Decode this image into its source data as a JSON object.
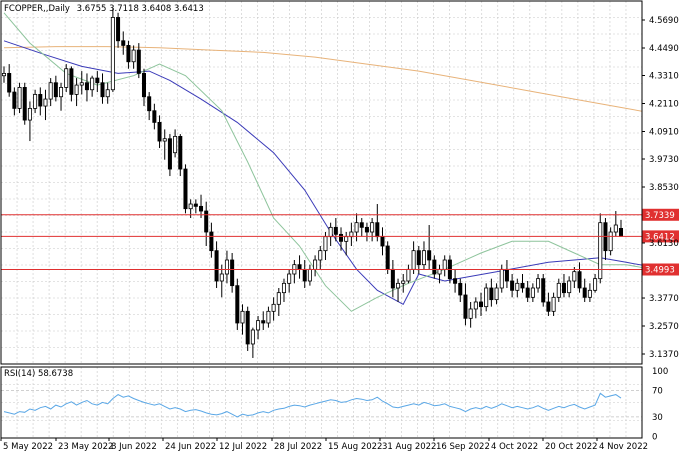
{
  "header": {
    "symbol_line": "FCOPPER,,Daily",
    "ohlc": "3.6755 3.7118 3.6408 3.6413"
  },
  "rsi_header": "RSI(14) 58.6738",
  "chart_data": [
    {
      "type": "candlestick",
      "title": "FCOPPER,,Daily 3.6755 3.7118 3.6408 3.6413",
      "ylim": [
        3.07,
        4.62
      ],
      "yticks": [
        "4.5690",
        "4.4490",
        "4.3310",
        "4.2110",
        "4.0910",
        "3.9730",
        "3.8530",
        "3.6130",
        "3.3770",
        "3.2570",
        "3.1370"
      ],
      "xticks": [
        "5 May 2022",
        "23 May 2022",
        "8 Jun 2022",
        "24 Jun 2022",
        "12 Jul 2022",
        "28 Jul 2022",
        "15 Aug 2022",
        "31 Aug 2022",
        "16 Sep 2022",
        "4 Oct 2022",
        "20 Oct 2022",
        "4 Nov 2022"
      ],
      "price_levels": [
        {
          "label": "3.7339",
          "value": 3.7339,
          "color": "#e03030"
        },
        {
          "label": "3.6412",
          "value": 3.6412,
          "color": "#e03030"
        },
        {
          "label": "3.4993",
          "value": 3.4993,
          "color": "#e03030"
        }
      ],
      "series": [
        {
          "name": "",
          "kind": "ma",
          "color": "#e8b37a",
          "points": [
            [
              0,
              4.45
            ],
            [
              10,
              4.455
            ],
            [
              20,
              4.455
            ],
            [
              30,
              4.45
            ],
            [
              40,
              4.44
            ],
            [
              50,
              4.43
            ],
            [
              60,
              4.41
            ],
            [
              70,
              4.38
            ],
            [
              80,
              4.35
            ],
            [
              90,
              4.31
            ],
            [
              100,
              4.27
            ],
            [
              110,
              4.23
            ],
            [
              120,
              4.19
            ],
            [
              130,
              4.15
            ],
            [
              140,
              4.12
            ],
            [
              150,
              4.08
            ],
            [
              160,
              4.04
            ],
            [
              170,
              4.0
            ],
            [
              175,
              3.985
            ]
          ]
        },
        {
          "name": "",
          "kind": "ma",
          "color": "#3a3ab8",
          "points": [
            [
              0,
              4.48
            ],
            [
              8,
              4.42
            ],
            [
              15,
              4.37
            ],
            [
              22,
              4.34
            ],
            [
              28,
              4.35
            ],
            [
              32,
              4.31
            ],
            [
              38,
              4.23
            ],
            [
              45,
              4.13
            ],
            [
              52,
              4.0
            ],
            [
              58,
              3.84
            ],
            [
              63,
              3.66
            ],
            [
              68,
              3.5
            ],
            [
              72,
              3.41
            ],
            [
              77,
              3.35
            ],
            [
              80,
              3.48
            ],
            [
              85,
              3.45
            ],
            [
              95,
              3.49
            ],
            [
              105,
              3.53
            ],
            [
              115,
              3.55
            ],
            [
              120,
              3.53
            ],
            [
              130,
              3.49
            ],
            [
              140,
              3.47
            ],
            [
              150,
              3.43
            ],
            [
              160,
              3.41
            ],
            [
              165,
              3.42
            ],
            [
              170,
              3.46
            ],
            [
              175,
              3.47
            ]
          ]
        },
        {
          "name": "",
          "kind": "ma",
          "color": "#8ec49c",
          "points": [
            [
              0,
              4.6
            ],
            [
              5,
              4.47
            ],
            [
              12,
              4.34
            ],
            [
              18,
              4.29
            ],
            [
              25,
              4.33
            ],
            [
              30,
              4.38
            ],
            [
              35,
              4.33
            ],
            [
              42,
              4.18
            ],
            [
              47,
              3.96
            ],
            [
              52,
              3.72
            ],
            [
              57,
              3.6
            ],
            [
              62,
              3.43
            ],
            [
              67,
              3.32
            ],
            [
              72,
              3.38
            ],
            [
              78,
              3.44
            ],
            [
              85,
              3.5
            ],
            [
              92,
              3.57
            ],
            [
              98,
              3.62
            ],
            [
              105,
              3.62
            ],
            [
              110,
              3.57
            ],
            [
              115,
              3.52
            ],
            [
              120,
              3.52
            ],
            [
              125,
              3.5
            ],
            [
              130,
              3.45
            ],
            [
              135,
              3.41
            ],
            [
              145,
              3.39
            ],
            [
              155,
              3.4
            ],
            [
              160,
              3.41
            ],
            [
              165,
              3.44
            ],
            [
              170,
              3.49
            ],
            [
              175,
              3.51
            ]
          ]
        }
      ],
      "candles": [
        [
          4.33,
          4.37,
          4.3,
          4.34
        ],
        [
          4.34,
          4.38,
          4.24,
          4.26
        ],
        [
          4.26,
          4.28,
          4.16,
          4.19
        ],
        [
          4.19,
          4.3,
          4.17,
          4.28
        ],
        [
          4.28,
          4.3,
          4.12,
          4.14
        ],
        [
          4.14,
          4.22,
          4.05,
          4.19
        ],
        [
          4.19,
          4.27,
          4.17,
          4.25
        ],
        [
          4.25,
          4.28,
          4.16,
          4.2
        ],
        [
          4.2,
          4.27,
          4.14,
          4.23
        ],
        [
          4.23,
          4.32,
          4.2,
          4.3
        ],
        [
          4.3,
          4.33,
          4.22,
          4.24
        ],
        [
          4.24,
          4.3,
          4.18,
          4.28
        ],
        [
          4.28,
          4.38,
          4.26,
          4.36
        ],
        [
          4.36,
          4.37,
          4.22,
          4.25
        ],
        [
          4.25,
          4.32,
          4.2,
          4.29
        ],
        [
          4.29,
          4.35,
          4.25,
          4.3
        ],
        [
          4.3,
          4.34,
          4.22,
          4.27
        ],
        [
          4.27,
          4.33,
          4.24,
          4.32
        ],
        [
          4.32,
          4.35,
          4.26,
          4.3
        ],
        [
          4.3,
          4.34,
          4.21,
          4.24
        ],
        [
          4.24,
          4.3,
          4.21,
          4.27
        ],
        [
          4.27,
          4.62,
          4.26,
          4.58
        ],
        [
          4.58,
          4.6,
          4.45,
          4.48
        ],
        [
          4.48,
          4.52,
          4.42,
          4.46
        ],
        [
          4.46,
          4.48,
          4.36,
          4.39
        ],
        [
          4.39,
          4.46,
          4.36,
          4.44
        ],
        [
          4.44,
          4.47,
          4.32,
          4.34
        ],
        [
          4.34,
          4.36,
          4.2,
          4.24
        ],
        [
          4.24,
          4.26,
          4.14,
          4.18
        ],
        [
          4.18,
          4.21,
          4.1,
          4.13
        ],
        [
          4.13,
          4.16,
          4.02,
          4.05
        ],
        [
          4.05,
          4.1,
          3.97,
          4.06
        ],
        [
          4.06,
          4.08,
          3.9,
          3.93
        ],
        [
          4.0,
          4.1,
          3.98,
          4.07
        ],
        [
          4.07,
          4.08,
          3.9,
          3.93
        ],
        [
          3.93,
          3.95,
          3.74,
          3.76
        ],
        [
          3.76,
          3.8,
          3.72,
          3.78
        ],
        [
          3.78,
          3.8,
          3.74,
          3.77
        ],
        [
          3.77,
          3.82,
          3.72,
          3.75
        ],
        [
          3.75,
          3.79,
          3.6,
          3.66
        ],
        [
          3.66,
          3.7,
          3.55,
          3.58
        ],
        [
          3.58,
          3.62,
          3.42,
          3.45
        ],
        [
          3.45,
          3.52,
          3.38,
          3.48
        ],
        [
          3.48,
          3.58,
          3.44,
          3.54
        ],
        [
          3.54,
          3.57,
          3.4,
          3.43
        ],
        [
          3.43,
          3.46,
          3.24,
          3.27
        ],
        [
          3.27,
          3.35,
          3.22,
          3.32
        ],
        [
          3.32,
          3.34,
          3.15,
          3.18
        ],
        [
          3.18,
          3.25,
          3.12,
          3.24
        ],
        [
          3.24,
          3.3,
          3.2,
          3.28
        ],
        [
          3.28,
          3.32,
          3.24,
          3.27
        ],
        [
          3.27,
          3.34,
          3.25,
          3.32
        ],
        [
          3.32,
          3.38,
          3.28,
          3.35
        ],
        [
          3.35,
          3.42,
          3.3,
          3.4
        ],
        [
          3.4,
          3.46,
          3.36,
          3.44
        ],
        [
          3.44,
          3.5,
          3.4,
          3.48
        ],
        [
          3.48,
          3.54,
          3.44,
          3.52
        ],
        [
          3.52,
          3.56,
          3.46,
          3.5
        ],
        [
          3.5,
          3.54,
          3.42,
          3.45
        ],
        [
          3.45,
          3.52,
          3.43,
          3.5
        ],
        [
          3.5,
          3.56,
          3.47,
          3.54
        ],
        [
          3.54,
          3.6,
          3.5,
          3.58
        ],
        [
          3.58,
          3.66,
          3.54,
          3.64
        ],
        [
          3.64,
          3.7,
          3.6,
          3.68
        ],
        [
          3.68,
          3.72,
          3.62,
          3.65
        ],
        [
          3.65,
          3.68,
          3.58,
          3.62
        ],
        [
          3.62,
          3.66,
          3.56,
          3.64
        ],
        [
          3.64,
          3.7,
          3.6,
          3.66
        ],
        [
          3.66,
          3.74,
          3.62,
          3.7
        ],
        [
          3.7,
          3.72,
          3.64,
          3.68
        ],
        [
          3.68,
          3.7,
          3.62,
          3.66
        ],
        [
          3.66,
          3.72,
          3.62,
          3.7
        ],
        [
          3.7,
          3.78,
          3.62,
          3.64
        ],
        [
          3.64,
          3.68,
          3.56,
          3.6
        ],
        [
          3.6,
          3.62,
          3.48,
          3.5
        ],
        [
          3.5,
          3.54,
          3.38,
          3.42
        ],
        [
          3.42,
          3.46,
          3.36,
          3.44
        ],
        [
          3.44,
          3.48,
          3.4,
          3.45
        ],
        [
          3.45,
          3.52,
          3.44,
          3.5
        ],
        [
          3.5,
          3.62,
          3.48,
          3.58
        ],
        [
          3.58,
          3.6,
          3.48,
          3.52
        ],
        [
          3.52,
          3.62,
          3.5,
          3.58
        ],
        [
          3.58,
          3.69,
          3.5,
          3.54
        ],
        [
          3.54,
          3.56,
          3.46,
          3.48
        ],
        [
          3.48,
          3.52,
          3.44,
          3.5
        ],
        [
          3.5,
          3.56,
          3.47,
          3.54
        ],
        [
          3.54,
          3.56,
          3.44,
          3.46
        ],
        [
          3.46,
          3.5,
          3.4,
          3.44
        ],
        [
          3.44,
          3.46,
          3.36,
          3.39
        ],
        [
          3.39,
          3.44,
          3.26,
          3.29
        ],
        [
          3.29,
          3.36,
          3.25,
          3.33
        ],
        [
          3.33,
          3.38,
          3.29,
          3.36
        ],
        [
          3.36,
          3.4,
          3.3,
          3.34
        ],
        [
          3.34,
          3.44,
          3.32,
          3.42
        ],
        [
          3.42,
          3.46,
          3.34,
          3.37
        ],
        [
          3.37,
          3.44,
          3.35,
          3.42
        ],
        [
          3.42,
          3.52,
          3.4,
          3.5
        ],
        [
          3.5,
          3.54,
          3.42,
          3.45
        ],
        [
          3.45,
          3.48,
          3.38,
          3.41
        ],
        [
          3.41,
          3.46,
          3.38,
          3.44
        ],
        [
          3.44,
          3.48,
          3.4,
          3.42
        ],
        [
          3.42,
          3.45,
          3.36,
          3.38
        ],
        [
          3.38,
          3.44,
          3.36,
          3.42
        ],
        [
          3.42,
          3.48,
          3.4,
          3.46
        ],
        [
          3.46,
          3.48,
          3.34,
          3.36
        ],
        [
          3.36,
          3.4,
          3.3,
          3.32
        ],
        [
          3.32,
          3.4,
          3.3,
          3.38
        ],
        [
          3.38,
          3.46,
          3.36,
          3.44
        ],
        [
          3.44,
          3.48,
          3.38,
          3.4
        ],
        [
          3.4,
          3.47,
          3.38,
          3.45
        ],
        [
          3.45,
          3.51,
          3.42,
          3.49
        ],
        [
          3.49,
          3.53,
          3.4,
          3.42
        ],
        [
          3.42,
          3.46,
          3.36,
          3.38
        ],
        [
          3.38,
          3.44,
          3.36,
          3.41
        ],
        [
          3.41,
          3.48,
          3.4,
          3.46
        ],
        [
          3.46,
          3.74,
          3.44,
          3.7
        ],
        [
          3.7,
          3.72,
          3.54,
          3.58
        ],
        [
          3.58,
          3.68,
          3.56,
          3.66
        ],
        [
          3.66,
          3.75,
          3.64,
          3.69
        ],
        [
          3.6755,
          3.7118,
          3.6408,
          3.6413
        ]
      ]
    },
    {
      "type": "line",
      "title": "RSI(14) 58.6738",
      "ylim": [
        0,
        100
      ],
      "yticks": [
        "100",
        "70",
        "30",
        "0"
      ],
      "guides": [
        70,
        30
      ],
      "series": [
        {
          "name": "",
          "color": "#5aa7e6",
          "values": [
            38,
            36,
            34,
            38,
            37,
            42,
            40,
            44,
            46,
            42,
            48,
            45,
            50,
            53,
            48,
            52,
            55,
            50,
            48,
            52,
            50,
            58,
            64,
            60,
            62,
            58,
            55,
            52,
            50,
            48,
            50,
            46,
            42,
            44,
            42,
            38,
            40,
            41,
            39,
            36,
            34,
            33,
            35,
            38,
            34,
            30,
            34,
            32,
            33,
            36,
            38,
            36,
            40,
            42,
            43,
            46,
            48,
            47,
            45,
            48,
            50,
            52,
            54,
            56,
            55,
            52,
            53,
            56,
            58,
            57,
            55,
            56,
            60,
            54,
            50,
            45,
            44,
            46,
            48,
            50,
            48,
            52,
            50,
            47,
            48,
            50,
            46,
            44,
            42,
            38,
            42,
            44,
            42,
            46,
            43,
            46,
            50,
            47,
            44,
            46,
            44,
            42,
            44,
            47,
            43,
            40,
            43,
            46,
            44,
            47,
            49,
            45,
            42,
            45,
            48,
            66,
            60,
            62,
            64,
            58.67
          ]
        }
      ]
    }
  ]
}
